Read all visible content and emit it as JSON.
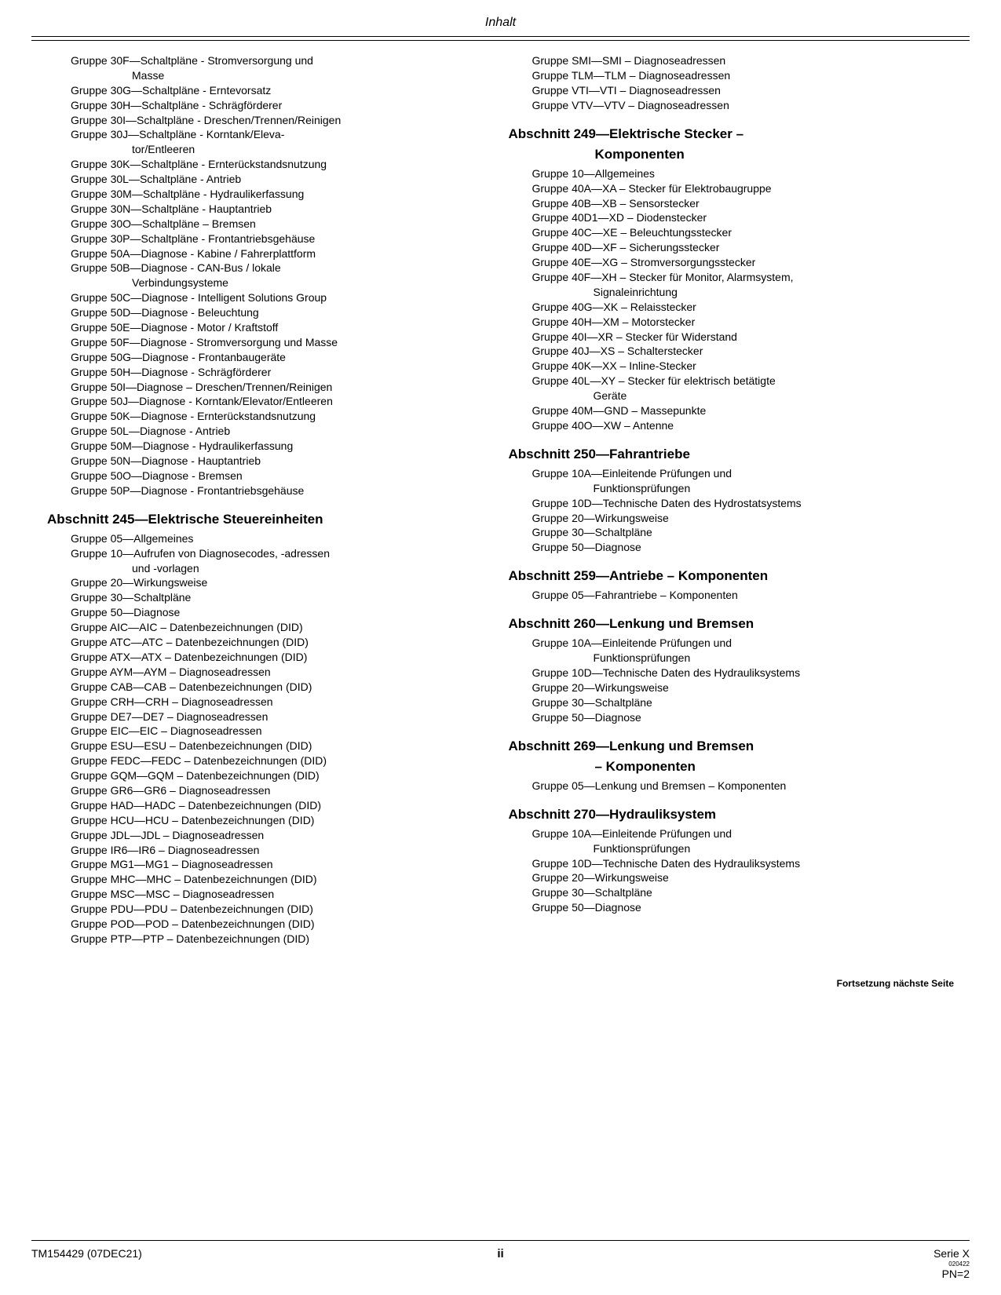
{
  "header": {
    "title": "Inhalt"
  },
  "left": {
    "continued_groups": [
      {
        "text": "Gruppe 30F—Schaltpläne - Stromversorgung und",
        "cont": "Masse"
      },
      {
        "text": "Gruppe 30G—Schaltpläne - Erntevorsatz"
      },
      {
        "text": "Gruppe 30H—Schaltpläne - Schrägförderer"
      },
      {
        "text": "Gruppe 30I—Schaltpläne - Dreschen/Trennen/Reinigen"
      },
      {
        "text": "Gruppe 30J—Schaltpläne - Korntank/Eleva-",
        "cont": "tor/Entleeren"
      },
      {
        "text": "Gruppe 30K—Schaltpläne - Ernterückstandsnutzung"
      },
      {
        "text": "Gruppe 30L—Schaltpläne - Antrieb"
      },
      {
        "text": "Gruppe 30M—Schaltpläne - Hydraulikerfassung"
      },
      {
        "text": "Gruppe 30N—Schaltpläne - Hauptantrieb"
      },
      {
        "text": "Gruppe 30O—Schaltpläne – Bremsen"
      },
      {
        "text": "Gruppe 30P—Schaltpläne - Frontantriebsgehäuse"
      },
      {
        "text": "Gruppe 50A—Diagnose - Kabine / Fahrerplattform"
      },
      {
        "text": "Gruppe 50B—Diagnose - CAN-Bus / lokale",
        "cont": "Verbindungsysteme"
      },
      {
        "text": "Gruppe 50C—Diagnose - Intelligent Solutions Group"
      },
      {
        "text": "Gruppe 50D—Diagnose - Beleuchtung"
      },
      {
        "text": "Gruppe 50E—Diagnose - Motor / Kraftstoff"
      },
      {
        "text": "Gruppe 50F—Diagnose - Stromversorgung und Masse"
      },
      {
        "text": "Gruppe 50G—Diagnose - Frontanbaugeräte"
      },
      {
        "text": "Gruppe 50H—Diagnose - Schrägförderer"
      },
      {
        "text": "Gruppe 50I—Diagnose – Dreschen/Trennen/Reinigen"
      },
      {
        "text": "Gruppe 50J—Diagnose - Korntank/Elevator/Entleeren"
      },
      {
        "text": "Gruppe 50K—Diagnose - Ernterückstandsnutzung"
      },
      {
        "text": "Gruppe 50L—Diagnose - Antrieb"
      },
      {
        "text": "Gruppe 50M—Diagnose - Hydraulikerfassung"
      },
      {
        "text": "Gruppe 50N—Diagnose - Hauptantrieb"
      },
      {
        "text": "Gruppe 50O—Diagnose - Bremsen"
      },
      {
        "text": "Gruppe 50P—Diagnose - Frontantriebsgehäuse"
      }
    ],
    "section245": {
      "heading": "Abschnitt 245—Elektrische Steuereinheiten",
      "groups": [
        {
          "text": "Gruppe 05—Allgemeines"
        },
        {
          "text": "Gruppe 10—Aufrufen von Diagnosecodes, -adressen",
          "cont": "und -vorlagen"
        },
        {
          "text": "Gruppe 20—Wirkungsweise"
        },
        {
          "text": "Gruppe 30—Schaltpläne"
        },
        {
          "text": "Gruppe 50—Diagnose"
        },
        {
          "text": "Gruppe AIC—AIC – Datenbezeichnungen (DID)"
        },
        {
          "text": "Gruppe ATC—ATC – Datenbezeichnungen (DID)"
        },
        {
          "text": "Gruppe ATX—ATX – Datenbezeichnungen (DID)"
        },
        {
          "text": "Gruppe AYM—AYM – Diagnoseadressen"
        },
        {
          "text": "Gruppe CAB—CAB – Datenbezeichnungen (DID)"
        },
        {
          "text": "Gruppe CRH—CRH – Diagnoseadressen"
        },
        {
          "text": "Gruppe DE7—DE7 – Diagnoseadressen"
        },
        {
          "text": "Gruppe EIC—EIC – Diagnoseadressen"
        },
        {
          "text": "Gruppe ESU—ESU – Datenbezeichnungen (DID)"
        },
        {
          "text": "Gruppe FEDC—FEDC – Datenbezeichnungen (DID)"
        },
        {
          "text": "Gruppe GQM—GQM – Datenbezeichnungen (DID)"
        },
        {
          "text": "Gruppe GR6—GR6 – Diagnoseadressen"
        },
        {
          "text": "Gruppe HAD—HADC – Datenbezeichnungen (DID)"
        },
        {
          "text": "Gruppe HCU—HCU – Datenbezeichnungen (DID)"
        },
        {
          "text": "Gruppe JDL—JDL – Diagnoseadressen"
        },
        {
          "text": "Gruppe IR6—IR6 – Diagnoseadressen"
        },
        {
          "text": "Gruppe MG1—MG1 – Diagnoseadressen"
        },
        {
          "text": "Gruppe MHC—MHC – Datenbezeichnungen (DID)"
        },
        {
          "text": "Gruppe MSC—MSC – Diagnoseadressen"
        },
        {
          "text": "Gruppe PDU—PDU – Datenbezeichnungen (DID)"
        },
        {
          "text": "Gruppe POD—POD – Datenbezeichnungen (DID)"
        },
        {
          "text": "Gruppe PTP—PTP – Datenbezeichnungen (DID)"
        }
      ]
    }
  },
  "right": {
    "continued_groups": [
      {
        "text": "Gruppe SMI—SMI – Diagnoseadressen"
      },
      {
        "text": "Gruppe TLM—TLM – Diagnoseadressen"
      },
      {
        "text": "Gruppe VTI—VTI – Diagnoseadressen"
      },
      {
        "text": "Gruppe VTV—VTV – Diagnoseadressen"
      }
    ],
    "section249": {
      "heading1": "Abschnitt 249—Elektrische Stecker –",
      "heading2": "Komponenten",
      "groups": [
        {
          "text": "Gruppe 10—Allgemeines"
        },
        {
          "text": "Gruppe 40A—XA – Stecker für Elektrobaugruppe"
        },
        {
          "text": "Gruppe 40B—XB – Sensorstecker"
        },
        {
          "text": "Gruppe 40D1—XD – Diodenstecker"
        },
        {
          "text": "Gruppe 40C—XE – Beleuchtungsstecker"
        },
        {
          "text": "Gruppe 40D—XF – Sicherungsstecker"
        },
        {
          "text": "Gruppe 40E—XG – Stromversorgungsstecker"
        },
        {
          "text": "Gruppe 40F—XH – Stecker für Monitor, Alarmsystem,",
          "cont": "Signaleinrichtung"
        },
        {
          "text": "Gruppe 40G—XK – Relaisstecker"
        },
        {
          "text": "Gruppe 40H—XM – Motorstecker"
        },
        {
          "text": "Gruppe 40I—XR – Stecker für Widerstand"
        },
        {
          "text": "Gruppe 40J—XS – Schalterstecker"
        },
        {
          "text": "Gruppe 40K—XX – Inline-Stecker"
        },
        {
          "text": "Gruppe 40L—XY – Stecker für elektrisch betätigte",
          "cont": "Geräte"
        },
        {
          "text": "Gruppe 40M—GND – Massepunkte"
        },
        {
          "text": "Gruppe 40O—XW – Antenne"
        }
      ]
    },
    "section250": {
      "heading": "Abschnitt 250—Fahrantriebe",
      "groups": [
        {
          "text": "Gruppe 10A—Einleitende Prüfungen und",
          "cont": "Funktionsprüfungen"
        },
        {
          "text": "Gruppe 10D—Technische Daten des Hydrostatsystems"
        },
        {
          "text": "Gruppe 20—Wirkungsweise"
        },
        {
          "text": "Gruppe 30—Schaltpläne"
        },
        {
          "text": "Gruppe 50—Diagnose"
        }
      ]
    },
    "section259": {
      "heading": "Abschnitt 259—Antriebe – Komponenten",
      "groups": [
        {
          "text": "Gruppe 05—Fahrantriebe – Komponenten"
        }
      ]
    },
    "section260": {
      "heading": "Abschnitt 260—Lenkung und Bremsen",
      "groups": [
        {
          "text": "Gruppe 10A—Einleitende Prüfungen und",
          "cont": "Funktionsprüfungen"
        },
        {
          "text": "Gruppe 10D—Technische Daten des Hydrauliksystems"
        },
        {
          "text": "Gruppe 20—Wirkungsweise"
        },
        {
          "text": "Gruppe 30—Schaltpläne"
        },
        {
          "text": "Gruppe 50—Diagnose"
        }
      ]
    },
    "section269": {
      "heading1": "Abschnitt 269—Lenkung und Bremsen",
      "heading2": "– Komponenten",
      "groups": [
        {
          "text": "Gruppe 05—Lenkung und Bremsen – Komponenten"
        }
      ]
    },
    "section270": {
      "heading": "Abschnitt 270—Hydrauliksystem",
      "groups": [
        {
          "text": "Gruppe 10A—Einleitende Prüfungen und",
          "cont": "Funktionsprüfungen"
        },
        {
          "text": "Gruppe 10D—Technische Daten des Hydrauliksystems"
        },
        {
          "text": "Gruppe 20—Wirkungsweise"
        },
        {
          "text": "Gruppe 30—Schaltpläne"
        },
        {
          "text": "Gruppe 50—Diagnose"
        }
      ]
    }
  },
  "continue_note": "Fortsetzung nächste Seite",
  "footer": {
    "left": "TM154429 (07DEC21)",
    "center": "ii",
    "right1": "Serie X",
    "right_tiny": "020422",
    "right2": "PN=2"
  }
}
